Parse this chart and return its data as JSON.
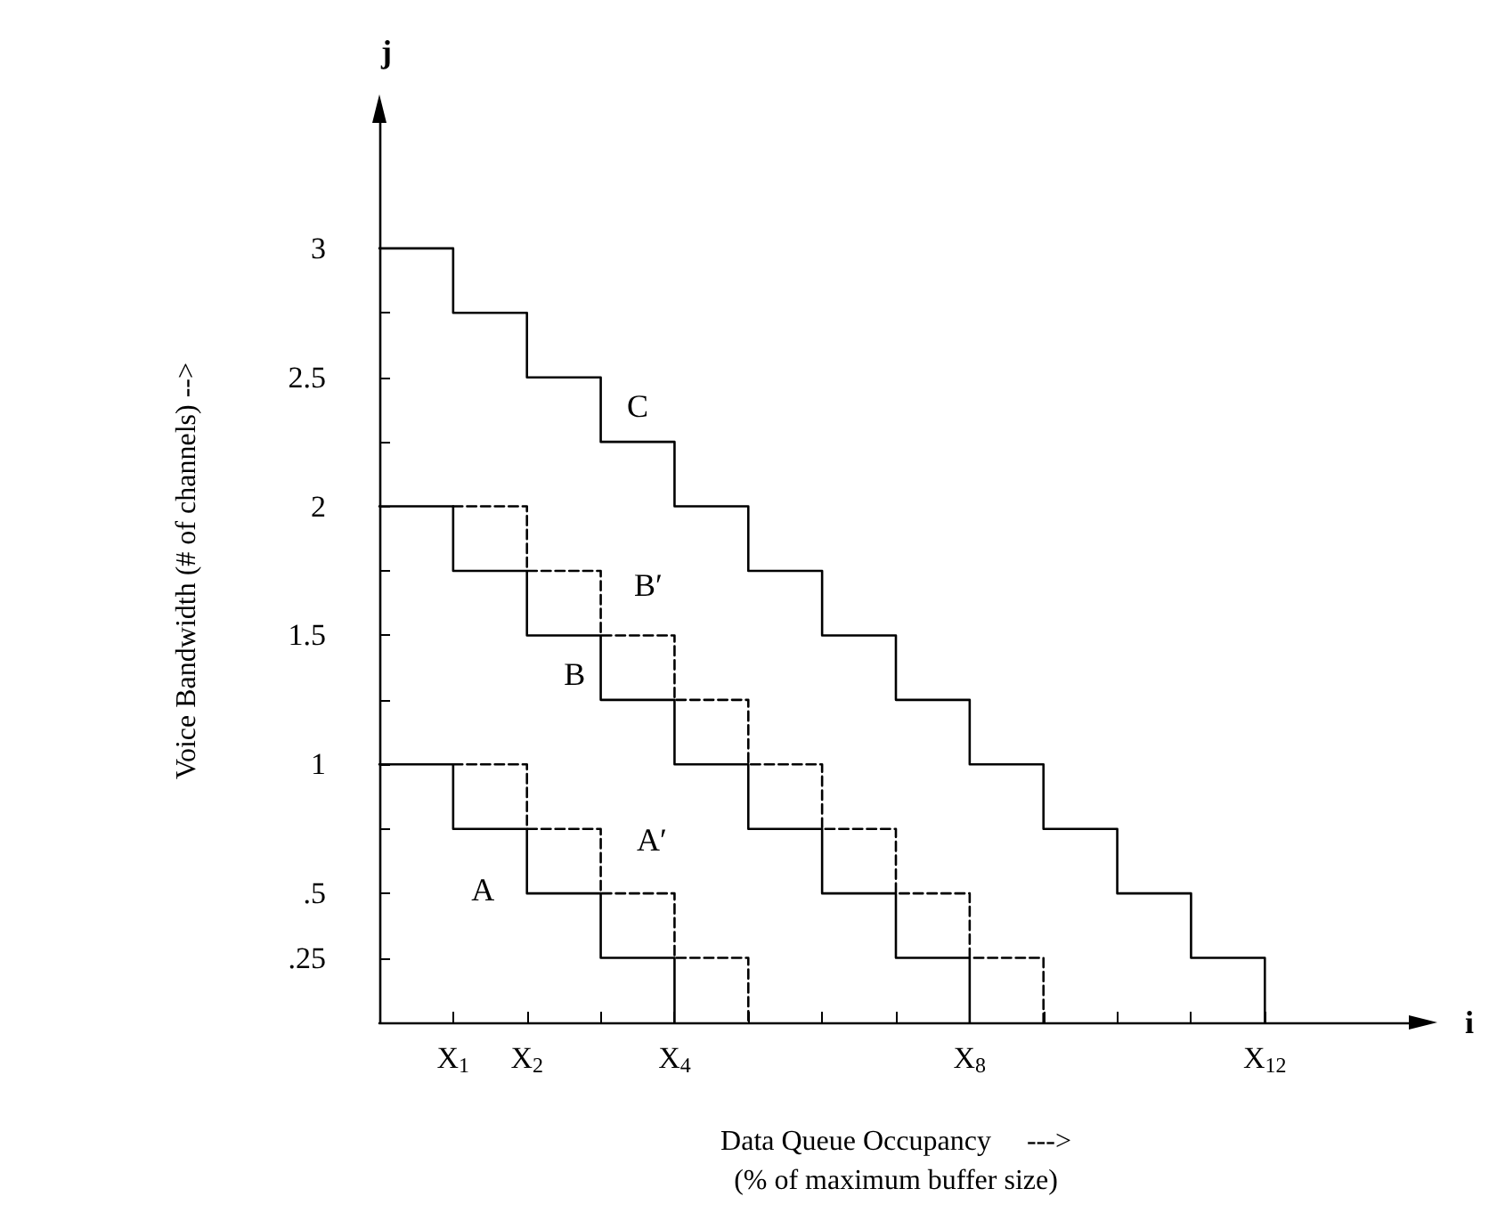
{
  "chart_data": {
    "type": "step",
    "xlabel": "Data Queue Occupancy     --->\n(% of maximum buffer size)",
    "ylabel": "Voice Bandwidth (# of channels) -->",
    "xlim": [
      0,
      14
    ],
    "ylim": [
      0,
      3.5
    ],
    "xticks": [
      {
        "value": 1,
        "label": "X$_{1}$"
      },
      {
        "value": 2,
        "label": "X$_{2}$"
      },
      {
        "value": 3,
        "label": null
      },
      {
        "value": 4,
        "label": "X$_{4}$"
      },
      {
        "value": 5,
        "label": null
      },
      {
        "value": 6,
        "label": null
      },
      {
        "value": 7,
        "label": null
      },
      {
        "value": 8,
        "label": "X$_{8}$"
      },
      {
        "value": 9,
        "label": null
      },
      {
        "value": 10,
        "label": null
      },
      {
        "value": 11,
        "label": null
      },
      {
        "value": 12,
        "label": "X$_{12}$"
      }
    ],
    "yticks": [
      {
        "value": 0.25,
        "label": ".25"
      },
      {
        "value": 0.5,
        "label": ".5"
      },
      {
        "value": 0.75,
        "label": null
      },
      1,
      {
        "value": 1.25,
        "label": null
      },
      1.5,
      {
        "value": 1.75,
        "label": null
      },
      2,
      {
        "value": 2.25,
        "label": null
      },
      2.5,
      {
        "value": 2.75,
        "label": null
      },
      3
    ],
    "grid": false,
    "marker": "none",
    "series": [
      {
        "name": "C",
        "color": "#000000",
        "line_style": "solid",
        "x": [
          0,
          1,
          2,
          3,
          4,
          5,
          6,
          7,
          8,
          9,
          10,
          11,
          12
        ],
        "values": [
          3,
          2.75,
          2.5,
          2.25,
          2,
          1.75,
          1.5,
          1.25,
          1,
          0.75,
          0.5,
          0.25,
          0
        ]
      },
      {
        "name": "B",
        "color": "#000000",
        "line_style": "solid",
        "x": [
          0,
          1,
          2,
          3,
          4,
          5,
          6,
          7,
          8
        ],
        "values": [
          2,
          1.75,
          1.5,
          1.25,
          1,
          0.75,
          0.5,
          0.25,
          0
        ]
      },
      {
        "name": "B′",
        "color": "#000000",
        "line_style": "dashed",
        "x": [
          1,
          2,
          3,
          4,
          5,
          6,
          7,
          8,
          9
        ],
        "values": [
          2,
          1.75,
          1.5,
          1.25,
          1,
          0.75,
          0.5,
          0.25,
          0
        ]
      },
      {
        "name": "A",
        "color": "#000000",
        "line_style": "solid",
        "x": [
          0,
          1,
          2,
          3,
          4
        ],
        "values": [
          1,
          0.75,
          0.5,
          0.25,
          0
        ]
      },
      {
        "name": "A′",
        "color": "#000000",
        "line_style": "dashed",
        "x": [
          1,
          2,
          3,
          4,
          5
        ],
        "values": [
          1,
          0.75,
          0.5,
          0.25,
          0
        ]
      }
    ],
    "annotations": [
      "j",
      "i"
    ]
  }
}
